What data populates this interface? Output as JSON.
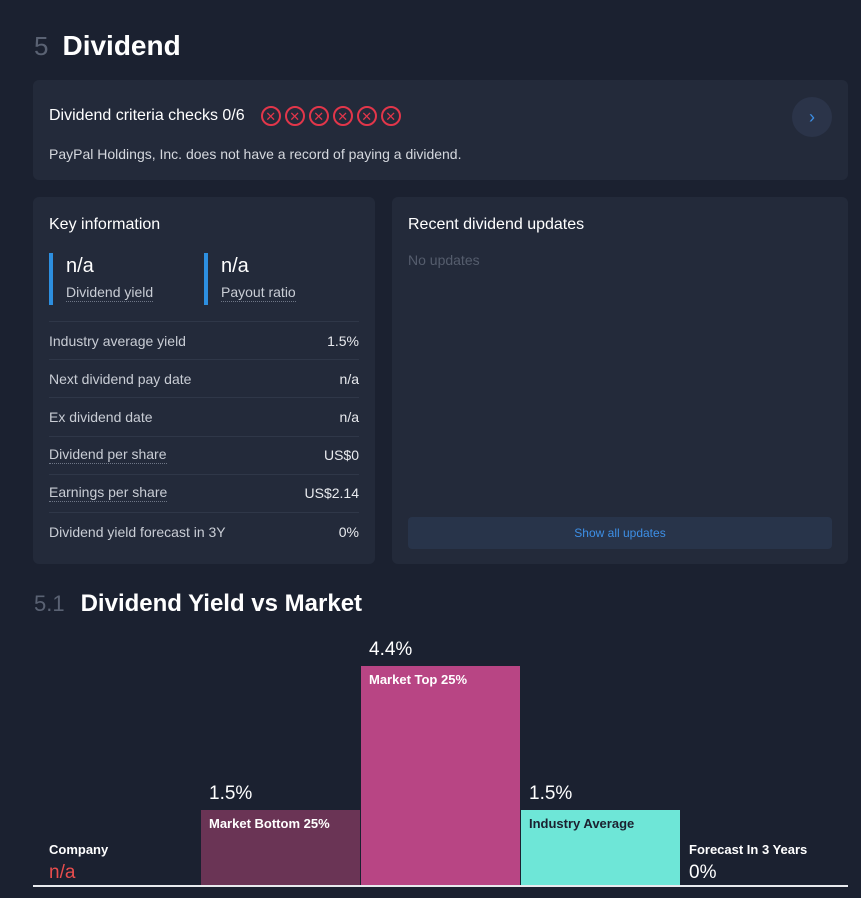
{
  "section": {
    "number": "5",
    "title": "Dividend"
  },
  "criteria": {
    "title": "Dividend criteria checks 0/6",
    "description": "PayPal Holdings, Inc. does not have a record of paying a dividend.",
    "checks": [
      "fail",
      "fail",
      "fail",
      "fail",
      "fail",
      "fail"
    ],
    "arrow_icon": "chevron-right-icon"
  },
  "key_info": {
    "heading": "Key information",
    "dividend_yield": {
      "value": "n/a",
      "label": "Dividend yield"
    },
    "payout_ratio": {
      "value": "n/a",
      "label": "Payout ratio"
    },
    "rows": [
      {
        "label": "Industry average yield",
        "value": "1.5%"
      },
      {
        "label": "Next dividend pay date",
        "value": "n/a"
      },
      {
        "label": "Ex dividend date",
        "value": "n/a"
      },
      {
        "label": "Dividend per share",
        "value": "US$0"
      },
      {
        "label": "Earnings per share",
        "value": "US$2.14"
      },
      {
        "label": "Dividend yield forecast in 3Y",
        "value": "0%"
      }
    ]
  },
  "updates": {
    "heading": "Recent dividend updates",
    "empty_text": "No updates",
    "show_all_label": "Show all updates"
  },
  "subsection": {
    "number": "5.1",
    "title": "Dividend Yield vs Market"
  },
  "colors": {
    "accent_blue": "#2d8fe0",
    "fail_red": "#e2364a",
    "market_bottom": "#6a3455",
    "market_top": "#b84584",
    "industry_average": "#6ee6d7",
    "company_na": "#e84d4d"
  },
  "chart_data": {
    "type": "bar",
    "categories": [
      "Company",
      "Market Bottom 25%",
      "Market Top 25%",
      "Industry Average",
      "Forecast In 3 Years"
    ],
    "values": [
      null,
      1.5,
      4.4,
      1.5,
      0
    ],
    "value_labels": [
      "n/a",
      "1.5%",
      "4.4%",
      "1.5%",
      "0%"
    ],
    "ylim": [
      0,
      4.4
    ]
  }
}
